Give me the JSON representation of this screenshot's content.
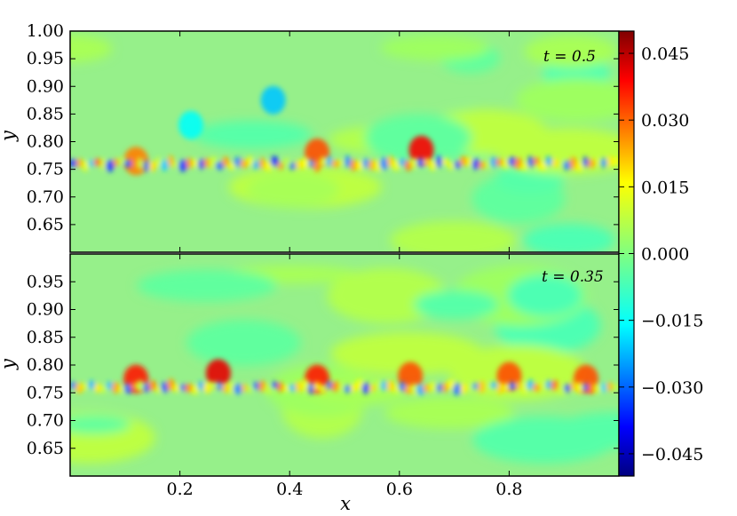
{
  "chart_data": {
    "type": "heatmap",
    "xlabel": "x",
    "ylabel": "y",
    "xlim": [
      0.0,
      1.0
    ],
    "x_ticks": [
      "0.2",
      "0.4",
      "0.6",
      "0.8"
    ],
    "x_tick_values": [
      0.2,
      0.4,
      0.6,
      0.8
    ],
    "colormap": "jet",
    "colorbar": {
      "range": [
        -0.05,
        0.05
      ],
      "tick_values": [
        0.045,
        0.03,
        0.015,
        0.0,
        -0.015,
        -0.03,
        -0.045
      ],
      "tick_labels": [
        "0.045",
        "0.030",
        "0.015",
        "0.000",
        "−0.015",
        "−0.030",
        "−0.045"
      ]
    },
    "panels": [
      {
        "annotation": "t = 0.5",
        "ylim": [
          0.6,
          1.0
        ],
        "y_tick_values": [
          1.0,
          0.95,
          0.9,
          0.85,
          0.8,
          0.75,
          0.7,
          0.65
        ],
        "y_ticks": [
          "1.00",
          "0.95",
          "0.90",
          "0.85",
          "0.80",
          "0.75",
          "0.70",
          "0.65"
        ],
        "interface_y": 0.76,
        "features": [
          {
            "x": 0.37,
            "y": 0.875,
            "value": -0.018
          },
          {
            "x": 0.22,
            "y": 0.83,
            "value": -0.012
          },
          {
            "x": 0.64,
            "y": 0.785,
            "value": 0.038
          },
          {
            "x": 0.45,
            "y": 0.78,
            "value": 0.03
          },
          {
            "x": 0.12,
            "y": 0.765,
            "value": 0.025
          }
        ]
      },
      {
        "annotation": "t = 0.35",
        "ylim": [
          0.6,
          1.0
        ],
        "y_tick_values": [
          0.95,
          0.9,
          0.85,
          0.8,
          0.75,
          0.7,
          0.65
        ],
        "y_ticks": [
          "0.95",
          "0.90",
          "0.85",
          "0.80",
          "0.75",
          "0.70",
          "0.65"
        ],
        "interface_y": 0.76,
        "features": [
          {
            "x": 0.12,
            "y": 0.775,
            "value": 0.035
          },
          {
            "x": 0.27,
            "y": 0.785,
            "value": 0.04
          },
          {
            "x": 0.45,
            "y": 0.775,
            "value": 0.035
          },
          {
            "x": 0.62,
            "y": 0.78,
            "value": 0.03
          },
          {
            "x": 0.8,
            "y": 0.78,
            "value": 0.03
          },
          {
            "x": 0.94,
            "y": 0.775,
            "value": 0.03
          }
        ]
      }
    ]
  }
}
